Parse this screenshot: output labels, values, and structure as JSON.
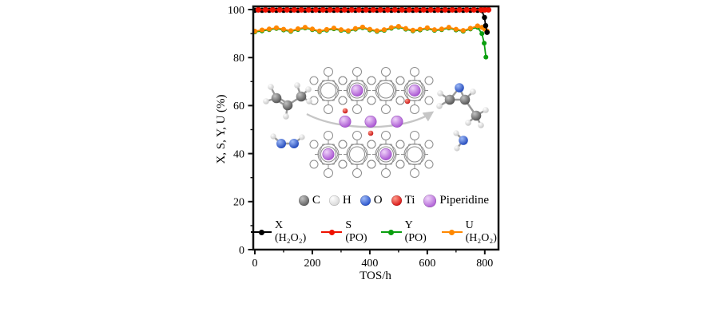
{
  "chart_data": {
    "type": "line",
    "title": "",
    "xlabel": "TOS/h",
    "ylabel": "X, S, Y, U (%)",
    "xlim": [
      0,
      845
    ],
    "ylim": [
      0,
      101
    ],
    "x_ticks": [
      0,
      200,
      400,
      600,
      800
    ],
    "x_minor_ticks": [
      100,
      300,
      500,
      700
    ],
    "y_ticks": [
      0,
      20,
      40,
      60,
      80,
      100
    ],
    "y_minor_ticks": [
      10,
      30,
      50,
      70,
      90
    ],
    "grid": false,
    "legend_position": "inside-bottom",
    "series": [
      {
        "name": "X (H₂O₂)",
        "color": "#000000",
        "marker_r": 3.3,
        "z": 3,
        "x": [
          0,
          25,
          50,
          75,
          100,
          125,
          150,
          175,
          200,
          225,
          250,
          275,
          300,
          325,
          350,
          375,
          400,
          425,
          450,
          475,
          500,
          525,
          550,
          575,
          600,
          625,
          650,
          675,
          700,
          725,
          750,
          775,
          790,
          799,
          803,
          808
        ],
        "y": [
          99.7,
          99.7,
          99.7,
          99.7,
          99.7,
          99.7,
          99.7,
          99.7,
          99.7,
          99.7,
          99.7,
          99.7,
          99.7,
          99.7,
          99.7,
          99.7,
          99.7,
          99.7,
          99.7,
          99.7,
          99.7,
          99.7,
          99.7,
          99.7,
          99.7,
          99.7,
          99.7,
          99.7,
          99.7,
          99.7,
          99.7,
          99.7,
          99.6,
          96.7,
          93.3,
          90.5
        ]
      },
      {
        "name": "S (PO)",
        "color": "#ee1100",
        "marker_r": 3.6,
        "z": 4,
        "x": [
          12,
          37,
          62,
          87,
          112,
          137,
          162,
          187,
          212,
          237,
          262,
          287,
          312,
          337,
          362,
          387,
          412,
          437,
          462,
          487,
          512,
          537,
          562,
          587,
          612,
          637,
          662,
          687,
          712,
          737,
          762,
          787,
          800,
          813
        ],
        "y": [
          99.9,
          99.9,
          99.9,
          99.9,
          99.9,
          99.9,
          99.9,
          99.9,
          99.9,
          99.9,
          99.9,
          99.9,
          99.9,
          99.9,
          99.9,
          99.9,
          99.9,
          99.9,
          99.9,
          99.9,
          99.9,
          99.9,
          99.9,
          99.9,
          99.9,
          99.9,
          99.9,
          99.9,
          99.9,
          99.9,
          99.9,
          99.9,
          99.9,
          99.9
        ]
      },
      {
        "name": "Y (PO)",
        "color": "#0a9f0f",
        "marker_r": 3.0,
        "z": 1,
        "x": [
          0,
          25,
          50,
          75,
          100,
          125,
          150,
          175,
          200,
          225,
          250,
          275,
          300,
          325,
          350,
          375,
          400,
          425,
          450,
          475,
          500,
          525,
          550,
          575,
          600,
          625,
          650,
          675,
          700,
          725,
          750,
          775,
          790,
          798,
          804
        ],
        "y": [
          90.7,
          91.1,
          91.6,
          92.1,
          91.5,
          90.9,
          91.7,
          92.3,
          91.6,
          90.8,
          91.4,
          92.0,
          91.3,
          90.9,
          91.8,
          92.4,
          91.5,
          90.9,
          91.3,
          92.2,
          92.7,
          91.8,
          91.1,
          91.5,
          92.1,
          91.3,
          91.6,
          92.3,
          91.5,
          91.0,
          91.9,
          92.6,
          90.0,
          86.0,
          80.2
        ]
      },
      {
        "name": "U (H₂O₂)",
        "color": "#ff8800",
        "marker_r": 3.1,
        "z": 2,
        "x": [
          0,
          25,
          50,
          75,
          100,
          125,
          150,
          175,
          200,
          225,
          250,
          275,
          300,
          325,
          350,
          375,
          400,
          425,
          450,
          475,
          500,
          525,
          550,
          575,
          600,
          625,
          650,
          675,
          700,
          725,
          750,
          775,
          790,
          800,
          808
        ],
        "y": [
          91.0,
          91.5,
          91.9,
          92.4,
          91.8,
          91.2,
          92.0,
          92.6,
          91.9,
          91.1,
          91.7,
          92.3,
          91.6,
          91.2,
          92.1,
          92.7,
          91.8,
          91.2,
          91.6,
          92.5,
          93.0,
          92.1,
          91.4,
          91.8,
          92.4,
          91.6,
          91.9,
          92.6,
          91.8,
          91.3,
          92.2,
          93.2,
          92.6,
          91.8,
          91.1
        ]
      }
    ]
  },
  "atom_legend": {
    "items": [
      {
        "label": "C",
        "color": "#5f5f5f",
        "highlight": "#c2c2c2"
      },
      {
        "label": "H",
        "color": "#d7d7d7",
        "highlight": "#ffffff"
      },
      {
        "label": "O",
        "color": "#2853cc",
        "highlight": "#9db9f7"
      },
      {
        "label": "Ti",
        "color": "#d81414",
        "highlight": "#ff9a8a"
      },
      {
        "label": "Piperidine",
        "color": "#b05fd6",
        "highlight": "#f0d5fa"
      }
    ]
  }
}
